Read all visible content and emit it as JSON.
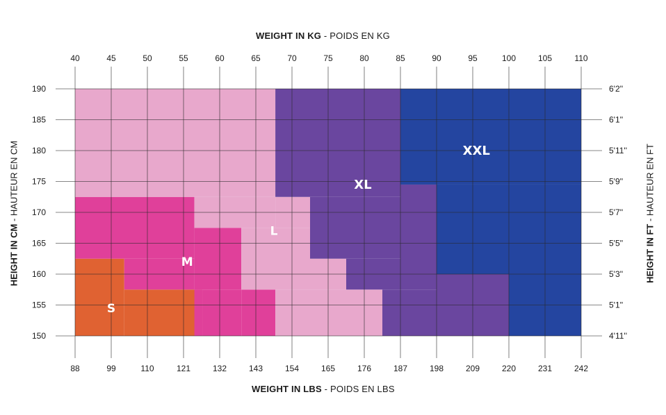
{
  "chart_data": {
    "type": "heatmap",
    "top_axis_title": {
      "bold": "WEIGHT IN KG",
      "normal": " - POIDS EN KG"
    },
    "bottom_axis_title": {
      "bold": "WEIGHT IN LBS",
      "normal": " - POIDS EN LBS"
    },
    "left_axis_title": {
      "bold": "HEIGHT IN CM",
      "normal": " - HAUTEUR EN CM"
    },
    "right_axis_title": {
      "bold": "HEIGHT IN FT",
      "normal": " - HAUTEUR EN FT"
    },
    "x_kg_ticks": [
      "40",
      "45",
      "50",
      "55",
      "60",
      "65",
      "70",
      "75",
      "80",
      "85",
      "90",
      "95",
      "100",
      "105",
      "110"
    ],
    "x_lbs_ticks": [
      "88",
      "99",
      "110",
      "121",
      "132",
      "143",
      "154",
      "165",
      "176",
      "187",
      "198",
      "209",
      "220",
      "231",
      "242"
    ],
    "y_cm_ticks": [
      "150",
      "155",
      "160",
      "165",
      "170",
      "175",
      "180",
      "185",
      "190"
    ],
    "y_ft_ticks": [
      "4'11''",
      "5'1''",
      "5'3''",
      "5'5''",
      "5'7''",
      "5'9''",
      "5'11''",
      "6'1''",
      "6'2''"
    ],
    "xlim_kg": [
      40,
      110
    ],
    "ylim_cm": [
      150,
      190
    ],
    "grid": true,
    "zones": [
      {
        "name": "S",
        "color": "#e06232",
        "label_kg": 45,
        "label_cm": 154.5,
        "regions": [
          [
            40,
            46.8,
            150,
            162.5
          ],
          [
            46.8,
            57.6,
            150,
            157.5
          ]
        ]
      },
      {
        "name": "M",
        "color": "#e0409a",
        "label_kg": 55.5,
        "label_cm": 162,
        "regions": [
          [
            40,
            56.5,
            162.5,
            172.5
          ],
          [
            46.8,
            56.5,
            157.5,
            162.5
          ],
          [
            57.6,
            63,
            150,
            157.5
          ],
          [
            56.5,
            63,
            157.5,
            167.5
          ],
          [
            56.5,
            57.6,
            150,
            157.5
          ],
          [
            63,
            67.7,
            150,
            157.5
          ]
        ]
      },
      {
        "name": "L",
        "color": "#e8a8cc",
        "label_kg": 67.5,
        "label_cm": 167,
        "regions": [
          [
            40,
            67.7,
            172.5,
            190
          ],
          [
            56.5,
            67.7,
            167.5,
            172.5
          ],
          [
            63,
            72.5,
            157.5,
            167.5
          ],
          [
            67.7,
            72.5,
            167.5,
            172.5
          ],
          [
            72.5,
            77.5,
            150,
            157.5
          ],
          [
            67.7,
            72.5,
            150,
            157.5
          ],
          [
            72.5,
            77.5,
            157.5,
            162.5
          ],
          [
            77.5,
            82.5,
            150,
            157.5
          ]
        ]
      },
      {
        "name": "XL",
        "color": "#6a469f",
        "label_kg": 79.8,
        "label_cm": 174.5,
        "regions": [
          [
            67.7,
            85,
            172.5,
            190
          ],
          [
            72.5,
            85,
            162.5,
            172.5
          ],
          [
            77.5,
            85,
            157.5,
            162.5
          ],
          [
            82.5,
            90,
            150,
            157.5
          ],
          [
            85,
            90,
            157.5,
            174.5
          ],
          [
            90,
            100,
            150,
            160
          ]
        ]
      },
      {
        "name": "XXL",
        "color": "#2445a0",
        "label_kg": 95.5,
        "label_cm": 180,
        "regions": [
          [
            85,
            110,
            174.5,
            190
          ],
          [
            90,
            110,
            160,
            174.5
          ],
          [
            100,
            110,
            150,
            160
          ]
        ]
      }
    ]
  }
}
